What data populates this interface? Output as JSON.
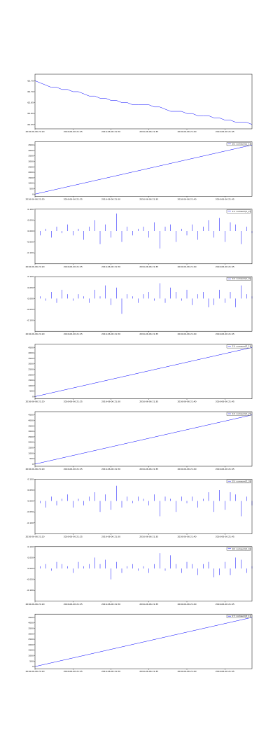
{
  "chart_data": [
    {
      "type": "line",
      "color": "#0000ff",
      "xlim": [
        0,
        40
      ],
      "ylim": [
        62.53,
        62.78
      ],
      "yticks": [
        {
          "value": 62.55,
          "label": "62.55"
        },
        {
          "value": 62.6,
          "label": "62.60"
        },
        {
          "value": 62.65,
          "label": "62.65"
        },
        {
          "value": 62.7,
          "label": "62.70"
        },
        {
          "value": 62.75,
          "label": "62.75"
        }
      ],
      "xticks": [
        {
          "value": 0,
          "label": "2016-06-06 21:20"
        },
        {
          "value": 7,
          "label": "2016-06-06 21:25"
        },
        {
          "value": 14,
          "label": "2016-06-06 21:30"
        },
        {
          "value": 21,
          "label": "2016-06-06 21:35"
        },
        {
          "value": 28,
          "label": "2016-06-06 21:40"
        },
        {
          "value": 35,
          "label": "2016-06-06 21:45"
        }
      ],
      "values": [
        62.75,
        62.74,
        62.73,
        62.72,
        62.72,
        62.71,
        62.71,
        62.7,
        62.7,
        62.69,
        62.68,
        62.68,
        62.67,
        62.67,
        62.66,
        62.66,
        62.65,
        62.65,
        62.64,
        62.64,
        62.64,
        62.64,
        62.63,
        62.63,
        62.62,
        62.61,
        62.61,
        62.61,
        62.6,
        62.6,
        62.59,
        62.59,
        62.59,
        62.58,
        62.58,
        62.57,
        62.57,
        62.56,
        62.56,
        62.56,
        62.55
      ]
    },
    {
      "type": "line",
      "color": "#0000ff",
      "series_name": "10: cumsum(1_1)",
      "xlim": [
        0,
        40
      ],
      "ylim": [
        -200,
        4800
      ],
      "yticks": [
        0,
        500,
        1000,
        1500,
        2000,
        2500,
        3000,
        3500,
        4000,
        4500
      ],
      "xticks": [
        {
          "value": 0,
          "label": "2016-06-06 21:20"
        },
        {
          "value": 7,
          "label": "2016-06-06 21:25"
        },
        {
          "value": 14,
          "label": "2016-06-06 21:30"
        },
        {
          "value": 21,
          "label": "2016-06-06 21:35"
        },
        {
          "value": 28,
          "label": "2016-06-06 21:40"
        },
        {
          "value": 35,
          "label": "2016-06-06 21:45"
        }
      ],
      "x": [
        0,
        40
      ],
      "values": [
        0,
        4500
      ]
    },
    {
      "type": "stem",
      "color": "#0000ff",
      "series_name": "11: cumsum(1_2)",
      "xlim": [
        0,
        40
      ],
      "ylim": [
        -0.15,
        0.1
      ],
      "yticks": [
        {
          "value": -0.1,
          "label": "-0.100"
        },
        {
          "value": -0.05,
          "label": "-0.050"
        },
        {
          "value": 0,
          "label": "0.000"
        },
        {
          "value": 0.05,
          "label": "0.050"
        },
        {
          "value": 0.1,
          "label": "0.100"
        }
      ],
      "xticks": [
        {
          "value": 0,
          "label": "2016-06-06 21:20"
        },
        {
          "value": 7,
          "label": "2016-06-06 21:25"
        },
        {
          "value": 14,
          "label": "2016-06-06 21:30"
        },
        {
          "value": 21,
          "label": "2016-06-06 21:35"
        },
        {
          "value": 28,
          "label": "2016-06-06 21:40"
        },
        {
          "value": 35,
          "label": "2016-06-06 21:45"
        }
      ],
      "values": [
        0,
        -0.02,
        0.01,
        -0.03,
        0.02,
        -0.01,
        0.03,
        -0.02,
        0.01,
        -0.04,
        0.02,
        0.05,
        -0.06,
        0.03,
        -0.03,
        0.08,
        -0.05,
        0.02,
        -0.02,
        0.01,
        0.02,
        -0.03,
        0.04,
        -0.08,
        0.02,
        0.03,
        -0.05,
        0.01,
        -0.02,
        0.03,
        -0.04,
        0.02,
        0.05,
        -0.03,
        0.06,
        -0.05,
        0.04,
        0.03,
        -0.06,
        0.02,
        -0.01
      ]
    },
    {
      "type": "stem",
      "color": "#0000ff",
      "series_name": "12: cumsum(1_3)",
      "xlim": [
        0,
        40
      ],
      "ylim": [
        -0.15,
        0.1
      ],
      "yticks": [
        {
          "value": -0.1,
          "label": "-0.100"
        },
        {
          "value": -0.05,
          "label": "-0.050"
        },
        {
          "value": 0,
          "label": "0.000"
        },
        {
          "value": 0.05,
          "label": "0.050"
        },
        {
          "value": 0.1,
          "label": "0.100"
        }
      ],
      "xticks": [
        {
          "value": 0,
          "label": "2016-06-06 21:20"
        },
        {
          "value": 7,
          "label": "2016-06-06 21:25"
        },
        {
          "value": 14,
          "label": "2016-06-06 21:30"
        },
        {
          "value": 21,
          "label": "2016-06-06 21:35"
        },
        {
          "value": 28,
          "label": "2016-06-06 21:40"
        },
        {
          "value": 35,
          "label": "2016-06-06 21:45"
        }
      ],
      "values": [
        0,
        0.01,
        -0.01,
        0.03,
        -0.02,
        0.04,
        0.02,
        -0.01,
        0.02,
        0.01,
        -0.02,
        0.04,
        0.01,
        0.06,
        -0.03,
        0.05,
        -0.07,
        0.02,
        0.01,
        -0.02,
        0.02,
        0.03,
        -0.01,
        0.07,
        -0.02,
        0.05,
        0.03,
        -0.01,
        0.04,
        -0.03,
        0.02,
        0.03,
        -0.04,
        -0.03,
        0.04,
        -0.02,
        0.03,
        -0.04,
        0.06,
        0.02,
        0.01
      ]
    },
    {
      "type": "line",
      "color": "#0000ff",
      "series_name": "13: cumsum(2_1)",
      "xlim": [
        0,
        40
      ],
      "ylim": [
        -200,
        4800
      ],
      "yticks": [
        0,
        500,
        1000,
        1500,
        2000,
        2500,
        3000,
        3500,
        4000,
        4500
      ],
      "xticks": [
        {
          "value": 0,
          "label": "2016-06-06 21:20"
        },
        {
          "value": 7,
          "label": "2016-06-06 21:25"
        },
        {
          "value": 14,
          "label": "2016-06-06 21:30"
        },
        {
          "value": 21,
          "label": "2016-06-06 21:35"
        },
        {
          "value": 28,
          "label": "2016-06-06 21:40"
        },
        {
          "value": 35,
          "label": "2016-06-06 21:45"
        }
      ],
      "x": [
        0,
        40
      ],
      "values": [
        0,
        4500
      ]
    },
    {
      "type": "line",
      "color": "#0000ff",
      "series_name": "14: cumsum(2_2)",
      "xlim": [
        0,
        40
      ],
      "ylim": [
        -200,
        4800
      ],
      "yticks": [
        0,
        500,
        1000,
        1500,
        2000,
        2500,
        3000,
        3500,
        4000,
        4500
      ],
      "xticks": [
        {
          "value": 0,
          "label": "2016-06-06 21:20"
        },
        {
          "value": 7,
          "label": "2016-06-06 21:25"
        },
        {
          "value": 14,
          "label": "2016-06-06 21:30"
        },
        {
          "value": 21,
          "label": "2016-06-06 21:35"
        },
        {
          "value": 28,
          "label": "2016-06-06 21:40"
        },
        {
          "value": 35,
          "label": "2016-06-06 21:45"
        }
      ],
      "x": [
        0,
        40
      ],
      "values": [
        0,
        4500
      ]
    },
    {
      "type": "stem",
      "color": "#0000ff",
      "series_name": "15: cumsum(2_3)",
      "xlim": [
        0,
        40
      ],
      "ylim": [
        -0.15,
        0.1
      ],
      "yticks": [
        {
          "value": -0.1,
          "label": "-0.100"
        },
        {
          "value": -0.05,
          "label": "-0.050"
        },
        {
          "value": 0,
          "label": "0.000"
        },
        {
          "value": 0.05,
          "label": "0.050"
        },
        {
          "value": 0.1,
          "label": "0.100"
        }
      ],
      "xticks": [
        {
          "value": 0,
          "label": "2016-06-06 21:20"
        },
        {
          "value": 7,
          "label": "2016-06-06 21:25"
        },
        {
          "value": 14,
          "label": "2016-06-06 21:30"
        },
        {
          "value": 21,
          "label": "2016-06-06 21:35"
        },
        {
          "value": 28,
          "label": "2016-06-06 21:40"
        },
        {
          "value": 35,
          "label": "2016-06-06 21:45"
        }
      ],
      "values": [
        0,
        -0.01,
        -0.03,
        0.02,
        -0.02,
        0.01,
        0.03,
        -0.03,
        0.01,
        -0.02,
        0.02,
        0.04,
        -0.05,
        0.03,
        -0.04,
        0.07,
        -0.03,
        0.02,
        -0.01,
        0.02,
        0.01,
        -0.02,
        0.03,
        -0.07,
        0.02,
        0.01,
        -0.05,
        0.02,
        -0.01,
        0.02,
        -0.03,
        0.01,
        0.04,
        -0.05,
        0.05,
        -0.04,
        0.04,
        0.03,
        -0.07,
        0.02,
        -0.02
      ]
    },
    {
      "type": "stem",
      "color": "#0000ff",
      "series_name": "16: cumsum(2_4)",
      "xlim": [
        0,
        40
      ],
      "ylim": [
        -0.15,
        0.1
      ],
      "yticks": [
        {
          "value": -0.1,
          "label": "-0.100"
        },
        {
          "value": -0.05,
          "label": "-0.050"
        },
        {
          "value": 0,
          "label": "0.000"
        },
        {
          "value": 0.05,
          "label": "0.050"
        },
        {
          "value": 0.1,
          "label": "0.100"
        }
      ],
      "xticks": [
        {
          "value": 0,
          "label": "2016-06-06 21:20"
        },
        {
          "value": 7,
          "label": "2016-06-06 21:25"
        },
        {
          "value": 14,
          "label": "2016-06-06 21:30"
        },
        {
          "value": 21,
          "label": "2016-06-06 21:35"
        },
        {
          "value": 28,
          "label": "2016-06-06 21:40"
        },
        {
          "value": 35,
          "label": "2016-06-06 21:45"
        }
      ],
      "values": [
        0,
        0.01,
        0.02,
        -0.01,
        0.03,
        0.02,
        0.01,
        -0.02,
        0.03,
        0.01,
        0.02,
        0.05,
        0.02,
        0.04,
        -0.05,
        0.03,
        -0.02,
        0.01,
        0.02,
        -0.01,
        0.01,
        -0.02,
        0.02,
        0.07,
        -0.01,
        0.06,
        0.02,
        -0.02,
        0.03,
        0.02,
        -0.03,
        0.02,
        0.03,
        -0.04,
        -0.03,
        0.03,
        -0.03,
        0.05,
        0.04,
        -0.02,
        0.01
      ]
    },
    {
      "type": "line",
      "color": "#0000ff",
      "series_name": "17: cumsum(3_1)",
      "xlim": [
        0,
        40
      ],
      "ylim": [
        -200,
        4800
      ],
      "yticks": [
        0,
        500,
        1000,
        1500,
        2000,
        2500,
        3000,
        3500,
        4000,
        4500
      ],
      "xticks": [
        {
          "value": 0,
          "label": "2016-06-06 21:20"
        },
        {
          "value": 7,
          "label": "2016-06-06 21:25"
        },
        {
          "value": 14,
          "label": "2016-06-06 21:30"
        },
        {
          "value": 21,
          "label": "2016-06-06 21:35"
        },
        {
          "value": 28,
          "label": "2016-06-06 21:40"
        },
        {
          "value": 35,
          "label": "2016-06-06 21:45"
        }
      ],
      "x": [
        0,
        40
      ],
      "values": [
        0,
        4500
      ]
    }
  ]
}
